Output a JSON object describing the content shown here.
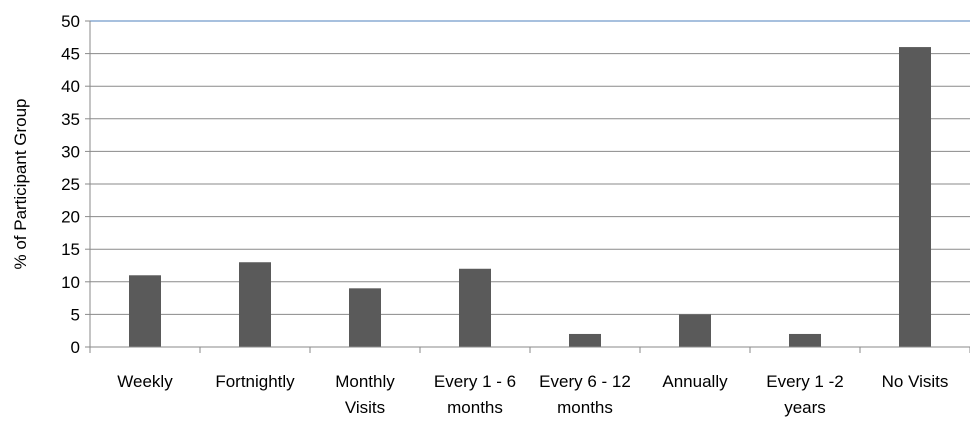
{
  "chart_data": {
    "type": "bar",
    "title": "",
    "xlabel": "",
    "ylabel": "% of Participant Group",
    "ylim": [
      0,
      50
    ],
    "yticks": [
      0,
      5,
      10,
      15,
      20,
      25,
      30,
      35,
      40,
      45,
      50
    ],
    "grid": true,
    "legend": "none",
    "categories": [
      [
        "Weekly"
      ],
      [
        "Fortnightly"
      ],
      [
        "Monthly",
        "Visits"
      ],
      [
        "Every 1 - 6",
        "months"
      ],
      [
        "Every 6 - 12",
        "months"
      ],
      [
        "Annually"
      ],
      [
        "Every 1 -2",
        "years"
      ],
      [
        "No Visits"
      ]
    ],
    "values": [
      11,
      13,
      9,
      12,
      2,
      5,
      2,
      46
    ],
    "colors": {
      "bar": "#5a5a5a",
      "grid": "#8a8a8a",
      "top_line": "#4f81bd",
      "axis": "#8a8a8a"
    }
  }
}
